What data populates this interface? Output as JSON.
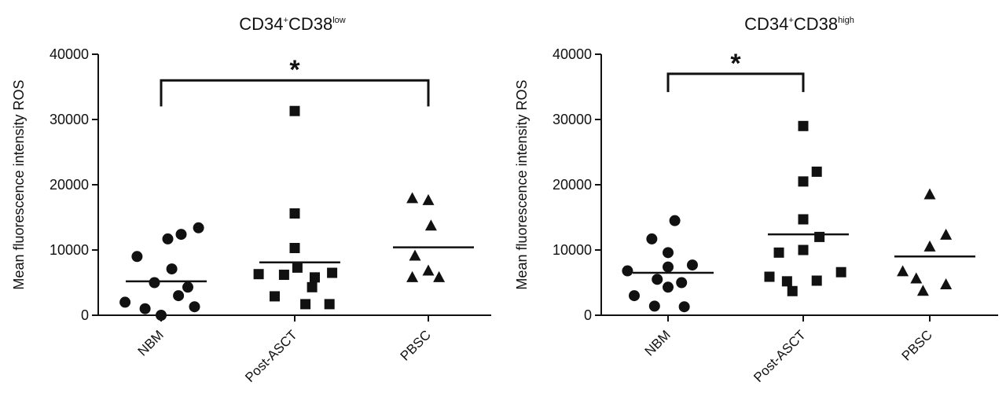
{
  "chart_data": [
    {
      "type": "scatter",
      "title_main": "CD34",
      "title_sup1": "+",
      "title_mid": "CD38",
      "title_sup2": "low",
      "ylabel": "Mean fluorescence intensity ROS",
      "ylim": [
        0,
        40000
      ],
      "yticks": [
        0,
        10000,
        20000,
        30000,
        40000
      ],
      "ytick_labels": [
        "0",
        "10000",
        "20000",
        "30000",
        "40000"
      ],
      "categories": [
        "NBM",
        "Post-ASCT",
        "PBSC"
      ],
      "grid": false,
      "legend": "none",
      "series": [
        {
          "category": "NBM",
          "marker": "circle",
          "mean": 5200,
          "points": [
            {
              "dx": -0.27,
              "y": 2000
            },
            {
              "dx": -0.18,
              "y": 9000
            },
            {
              "dx": -0.12,
              "y": 1000
            },
            {
              "dx": -0.05,
              "y": 5000
            },
            {
              "dx": 0.0,
              "y": 0
            },
            {
              "dx": 0.05,
              "y": 11700
            },
            {
              "dx": 0.08,
              "y": 7100
            },
            {
              "dx": 0.13,
              "y": 3000
            },
            {
              "dx": 0.15,
              "y": 12400
            },
            {
              "dx": 0.2,
              "y": 4300
            },
            {
              "dx": 0.25,
              "y": 1300
            },
            {
              "dx": 0.28,
              "y": 13400
            }
          ]
        },
        {
          "category": "Post-ASCT",
          "marker": "square",
          "mean": 8100,
          "points": [
            {
              "dx": -0.27,
              "y": 6300
            },
            {
              "dx": -0.15,
              "y": 2900
            },
            {
              "dx": -0.08,
              "y": 6200
            },
            {
              "dx": 0.0,
              "y": 15600
            },
            {
              "dx": 0.0,
              "y": 10300
            },
            {
              "dx": 0.02,
              "y": 7300
            },
            {
              "dx": 0.08,
              "y": 1700
            },
            {
              "dx": 0.0,
              "y": 31300
            },
            {
              "dx": 0.13,
              "y": 4300
            },
            {
              "dx": 0.15,
              "y": 5800
            },
            {
              "dx": 0.28,
              "y": 6500
            },
            {
              "dx": 0.26,
              "y": 1700
            }
          ]
        },
        {
          "category": "PBSC",
          "marker": "triangle",
          "mean": 10400,
          "points": [
            {
              "dx": -0.12,
              "y": 17900
            },
            {
              "dx": 0.0,
              "y": 17600
            },
            {
              "dx": 0.02,
              "y": 13700
            },
            {
              "dx": -0.1,
              "y": 9100
            },
            {
              "dx": -0.12,
              "y": 5800
            },
            {
              "dx": 0.0,
              "y": 6800
            },
            {
              "dx": 0.08,
              "y": 5800
            }
          ]
        }
      ],
      "significance": {
        "from": "NBM",
        "to": "PBSC",
        "y_drop": 32000,
        "y_bar": 36000,
        "label": "*"
      }
    },
    {
      "type": "scatter",
      "title_main": "CD34",
      "title_sup1": "+",
      "title_mid": "CD38",
      "title_sup2": "high",
      "ylabel": "Mean fluorescence intensity ROS",
      "ylim": [
        0,
        40000
      ],
      "yticks": [
        0,
        10000,
        20000,
        30000,
        40000
      ],
      "ytick_labels": [
        "0",
        "10000",
        "20000",
        "30000",
        "40000"
      ],
      "categories": [
        "NBM",
        "Post-ASCT",
        "PBSC"
      ],
      "grid": false,
      "legend": "none",
      "series": [
        {
          "category": "NBM",
          "marker": "circle",
          "mean": 6500,
          "points": [
            {
              "dx": -0.3,
              "y": 6800
            },
            {
              "dx": -0.25,
              "y": 3000
            },
            {
              "dx": -0.12,
              "y": 11700
            },
            {
              "dx": -0.1,
              "y": 1400
            },
            {
              "dx": -0.08,
              "y": 5500
            },
            {
              "dx": 0.0,
              "y": 9600
            },
            {
              "dx": 0.0,
              "y": 7400
            },
            {
              "dx": 0.0,
              "y": 4300
            },
            {
              "dx": 0.05,
              "y": 14500
            },
            {
              "dx": 0.1,
              "y": 5000
            },
            {
              "dx": 0.12,
              "y": 1300
            },
            {
              "dx": 0.18,
              "y": 7700
            }
          ]
        },
        {
          "category": "Post-ASCT",
          "marker": "square",
          "mean": 12400,
          "points": [
            {
              "dx": -0.25,
              "y": 5900
            },
            {
              "dx": -0.18,
              "y": 9600
            },
            {
              "dx": -0.12,
              "y": 5200
            },
            {
              "dx": -0.08,
              "y": 3700
            },
            {
              "dx": 0.0,
              "y": 20500
            },
            {
              "dx": 0.0,
              "y": 14700
            },
            {
              "dx": 0.0,
              "y": 10000
            },
            {
              "dx": 0.0,
              "y": 29000
            },
            {
              "dx": 0.1,
              "y": 22000
            },
            {
              "dx": 0.12,
              "y": 12000
            },
            {
              "dx": 0.1,
              "y": 5300
            },
            {
              "dx": 0.28,
              "y": 6600
            }
          ]
        },
        {
          "category": "PBSC",
          "marker": "triangle",
          "mean": 9000,
          "points": [
            {
              "dx": -0.2,
              "y": 6700
            },
            {
              "dx": -0.05,
              "y": 3700
            },
            {
              "dx": 0.0,
              "y": 10500
            },
            {
              "dx": 0.0,
              "y": 18500
            },
            {
              "dx": 0.12,
              "y": 12300
            },
            {
              "dx": 0.12,
              "y": 4700
            },
            {
              "dx": -0.1,
              "y": 5600
            }
          ]
        }
      ],
      "significance": {
        "from": "NBM",
        "to": "Post-ASCT",
        "y_drop": 34200,
        "y_bar": 37000,
        "label": "*"
      }
    }
  ]
}
